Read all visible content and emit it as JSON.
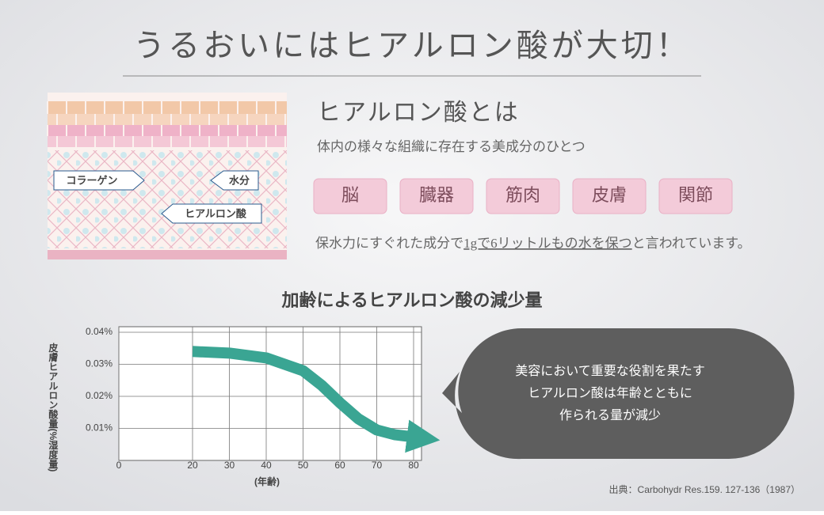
{
  "header": {
    "title": "うるおいにはヒアルロン酸が大切！"
  },
  "illustration": {
    "labels": [
      "コラーゲン",
      "水分",
      "ヒアルロン酸"
    ]
  },
  "about": {
    "heading": "ヒアルロン酸とは",
    "description": "体内の様々な組織に存在する美成分のひとつ",
    "tags": [
      "脳",
      "臓器",
      "筋肉",
      "皮膚",
      "関節"
    ],
    "sentence": [
      "保水力にすぐれた成分で",
      "1gで6リットルもの水を保つ",
      "と言われています。"
    ]
  },
  "chart_data": {
    "type": "line",
    "title": "加齢によるヒアルロン酸の減少量",
    "y_label": "皮膚ヒアルロン酸量(%湿度量)",
    "x_label": "(年齢)",
    "x": [
      20,
      30,
      40,
      50,
      55,
      60,
      65,
      70,
      75,
      80
    ],
    "values": [
      0.034,
      0.0335,
      0.032,
      0.028,
      0.0235,
      0.018,
      0.013,
      0.0095,
      0.008,
      0.0073
    ],
    "color": "#3aa593",
    "xlim": [
      0,
      80
    ],
    "xticks": [
      0,
      20,
      30,
      40,
      50,
      60,
      70,
      80
    ],
    "ylim": [
      0,
      0.04
    ],
    "yticks": [
      {
        "value": 0.01,
        "label": "0.01%"
      },
      {
        "value": 0.02,
        "label": "0.02%"
      },
      {
        "value": 0.03,
        "label": "0.03%"
      },
      {
        "value": 0.04,
        "label": "0.04%"
      }
    ],
    "grid": true
  },
  "callout": {
    "lines": [
      "美容において重要な役割を果たす",
      "ヒアルロン酸は年齢とともに",
      "作られる量が減少"
    ]
  },
  "source": "出典：Carbohydr Res.159. 127-136（1987）"
}
